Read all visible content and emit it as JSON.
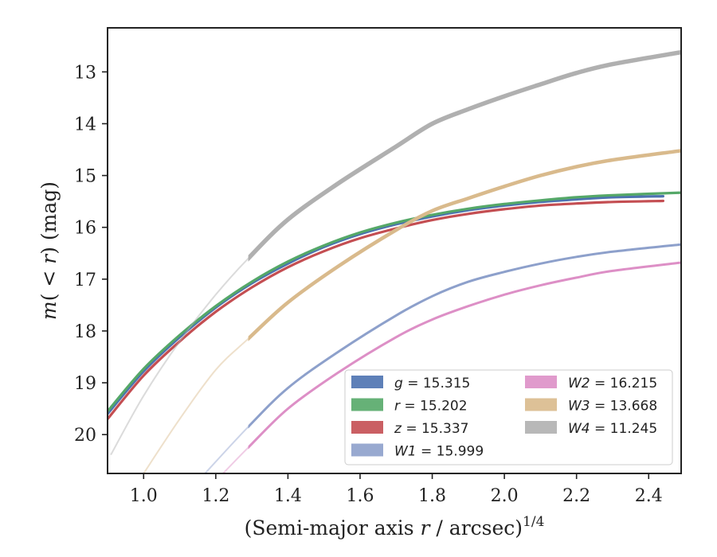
{
  "chart_data": {
    "type": "line",
    "xlabel": "(Semi-major axis r / arcsec)",
    "xlabel_parts": {
      "pre": "(Semi-major axis ",
      "r": "r",
      "post": " / arcsec)",
      "sup": "1/4"
    },
    "ylabel_parts": {
      "m": "m",
      "mid": "( < ",
      "r": "r",
      "post": ")",
      "unit": " (mag)"
    },
    "xlim": [
      0.9,
      2.49
    ],
    "ylim": [
      20.75,
      12.15
    ],
    "y_inverted": true,
    "x_ticks": [
      "1.0",
      "1.2",
      "1.4",
      "1.6",
      "1.8",
      "2.0",
      "2.2",
      "2.4"
    ],
    "x_tick_values": [
      1.0,
      1.2,
      1.4,
      1.6,
      1.8,
      2.0,
      2.2,
      2.4
    ],
    "y_ticks": [
      "13",
      "14",
      "15",
      "16",
      "17",
      "18",
      "19",
      "20"
    ],
    "y_tick_values": [
      13,
      14,
      15,
      16,
      17,
      18,
      19,
      20
    ],
    "grid": false,
    "legend_position": "lower-right",
    "series": [
      {
        "name": "g = 15.315",
        "legend_var": "g",
        "legend_val": "15.315",
        "color": "#4c72b0",
        "x": [
          0.9,
          1.0,
          1.1,
          1.2,
          1.3,
          1.4,
          1.5,
          1.6,
          1.7,
          1.8,
          1.9,
          2.0,
          2.1,
          2.2,
          2.3,
          2.44
        ],
        "y": [
          19.6,
          18.78,
          18.12,
          17.55,
          17.08,
          16.7,
          16.38,
          16.13,
          15.94,
          15.79,
          15.67,
          15.58,
          15.51,
          15.46,
          15.42,
          15.4
        ]
      },
      {
        "name": "r = 15.202",
        "legend_var": "r",
        "legend_val": "15.202",
        "color": "#55a868",
        "x": [
          0.9,
          1.0,
          1.1,
          1.2,
          1.3,
          1.4,
          1.5,
          1.6,
          1.7,
          1.8,
          1.9,
          2.0,
          2.1,
          2.2,
          2.3,
          2.49
        ],
        "y": [
          19.55,
          18.73,
          18.08,
          17.52,
          17.05,
          16.66,
          16.35,
          16.1,
          15.91,
          15.76,
          15.64,
          15.55,
          15.48,
          15.42,
          15.38,
          15.33
        ]
      },
      {
        "name": "z = 15.337",
        "legend_var": "z",
        "legend_val": "15.337",
        "color": "#c44e52",
        "x": [
          0.9,
          1.0,
          1.1,
          1.2,
          1.3,
          1.4,
          1.5,
          1.6,
          1.7,
          1.8,
          1.9,
          2.0,
          2.1,
          2.2,
          2.3,
          2.44
        ],
        "y": [
          19.7,
          18.86,
          18.2,
          17.63,
          17.16,
          16.77,
          16.46,
          16.21,
          16.02,
          15.86,
          15.74,
          15.65,
          15.58,
          15.54,
          15.51,
          15.49
        ]
      },
      {
        "name": "W1 = 15.999",
        "legend_var": "W1",
        "legend_val": "15.999",
        "color": "#8da0cb",
        "x": [
          1.17,
          1.29,
          1.4,
          1.54,
          1.7,
          1.8,
          1.9,
          2.0,
          2.1,
          2.2,
          2.3,
          2.49
        ],
        "y": [
          20.75,
          19.85,
          19.1,
          18.4,
          17.7,
          17.33,
          17.05,
          16.86,
          16.7,
          16.57,
          16.47,
          16.33
        ]
      },
      {
        "name": "W2 = 16.215",
        "legend_var": "W2",
        "legend_val": "16.215",
        "color": "#dd8fc6",
        "x": [
          1.22,
          1.29,
          1.4,
          1.54,
          1.7,
          1.8,
          1.9,
          2.0,
          2.1,
          2.2,
          2.3,
          2.49
        ],
        "y": [
          20.75,
          20.25,
          19.5,
          18.8,
          18.12,
          17.78,
          17.52,
          17.3,
          17.12,
          16.97,
          16.84,
          16.68
        ]
      },
      {
        "name": "W3 = 13.668",
        "legend_var": "W3",
        "legend_val": "13.668",
        "color": "#d9ba8c",
        "x": [
          1.0,
          1.1,
          1.2,
          1.29,
          1.4,
          1.54,
          1.7,
          1.8,
          1.9,
          2.0,
          2.1,
          2.2,
          2.3,
          2.49
        ],
        "y": [
          20.75,
          19.7,
          18.75,
          18.15,
          17.45,
          16.75,
          16.05,
          15.68,
          15.44,
          15.21,
          15.0,
          14.83,
          14.7,
          14.52
        ]
      },
      {
        "name": "W4 = 11.245",
        "legend_var": "W4",
        "legend_val": "11.245",
        "color": "#b0b0b0",
        "x": [
          0.91,
          1.0,
          1.1,
          1.2,
          1.29,
          1.4,
          1.54,
          1.7,
          1.8,
          1.9,
          2.0,
          2.1,
          2.2,
          2.3,
          2.49
        ],
        "y": [
          20.38,
          19.25,
          18.2,
          17.3,
          16.6,
          15.85,
          15.15,
          14.44,
          14.0,
          13.72,
          13.47,
          13.24,
          13.02,
          12.85,
          12.62
        ]
      }
    ]
  }
}
